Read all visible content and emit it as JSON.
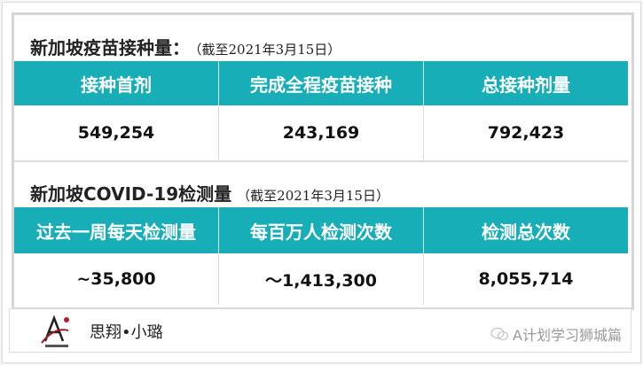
{
  "vaccine": {
    "title": "新加坡疫苗接种量：",
    "subtitle": "（截至2021年3月15日）",
    "headers": [
      "接种首剂",
      "完成全程疫苗接种",
      "总接种剂量"
    ],
    "values": [
      "549,254",
      "243,169",
      "792,423"
    ]
  },
  "testing": {
    "title": "新加坡COVID-19检测量",
    "subtitle": "（截至2021年3月15日）",
    "headers": [
      "过去一周每天检测量",
      "每百万人检测次数",
      "检测总次数"
    ],
    "values": [
      "~35,800",
      "～1,413,300",
      "8,055,714"
    ]
  },
  "footer": {
    "logo_text": "学习狮城篇",
    "brand": "思翔•小璐",
    "watermark": "A计划学习狮城篇",
    "watermark_icon": "wechat-icon"
  },
  "colors": {
    "header_bg": "#17aeb8",
    "header_text": "#ffffff"
  }
}
